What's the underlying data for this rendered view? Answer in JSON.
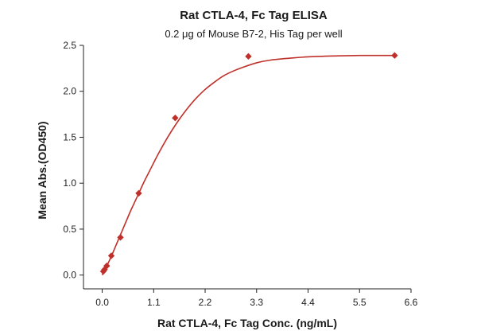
{
  "chart_data": {
    "type": "scatter",
    "title": "Rat CTLA-4, Fc Tag ELISA",
    "subtitle": "0.2 μg of Mouse B7-2, His Tag per well",
    "xlabel": "Rat CTLA-4, Fc Tag Conc. (ng/mL)",
    "ylabel": "Mean Abs.(OD450)",
    "xlim": [
      -0.4,
      6.6
    ],
    "ylim": [
      -0.15,
      2.5
    ],
    "xticks": [
      0.0,
      1.1,
      2.2,
      3.3,
      4.4,
      5.5,
      6.6
    ],
    "xtick_labels": [
      "0.0",
      "1.1",
      "2.2",
      "3.3",
      "4.4",
      "5.5",
      "6.6"
    ],
    "yticks": [
      0.0,
      0.5,
      1.0,
      1.5,
      2.0,
      2.5
    ],
    "ytick_labels": [
      "0.0",
      "0.5",
      "1.0",
      "1.5",
      "2.0",
      "2.5"
    ],
    "grid": false,
    "legend": "none",
    "series": [
      {
        "marker": "diamond",
        "color": "#c0302a",
        "points": [
          {
            "x": 0.024,
            "y": 0.04
          },
          {
            "x": 0.049,
            "y": 0.06
          },
          {
            "x": 0.098,
            "y": 0.1
          },
          {
            "x": 0.195,
            "y": 0.21
          },
          {
            "x": 0.39,
            "y": 0.41
          },
          {
            "x": 0.78,
            "y": 0.89
          },
          {
            "x": 1.56,
            "y": 1.71
          },
          {
            "x": 3.125,
            "y": 2.38
          },
          {
            "x": 6.25,
            "y": 2.39
          }
        ]
      }
    ],
    "fit_curve": {
      "color": "#c0302a",
      "x": [
        0.0,
        0.1,
        0.2,
        0.3,
        0.4,
        0.5,
        0.6,
        0.7,
        0.8,
        0.9,
        1.0,
        1.2,
        1.4,
        1.6,
        1.8,
        2.0,
        2.2,
        2.4,
        2.6,
        2.8,
        3.0,
        3.3,
        3.6,
        4.0,
        4.4,
        5.0,
        5.5,
        6.25
      ],
      "y": [
        0.0,
        0.1,
        0.21,
        0.33,
        0.45,
        0.57,
        0.69,
        0.8,
        0.91,
        1.02,
        1.12,
        1.32,
        1.5,
        1.66,
        1.8,
        1.92,
        2.02,
        2.1,
        2.17,
        2.22,
        2.26,
        2.31,
        2.34,
        2.36,
        2.375,
        2.385,
        2.39,
        2.39
      ]
    }
  }
}
